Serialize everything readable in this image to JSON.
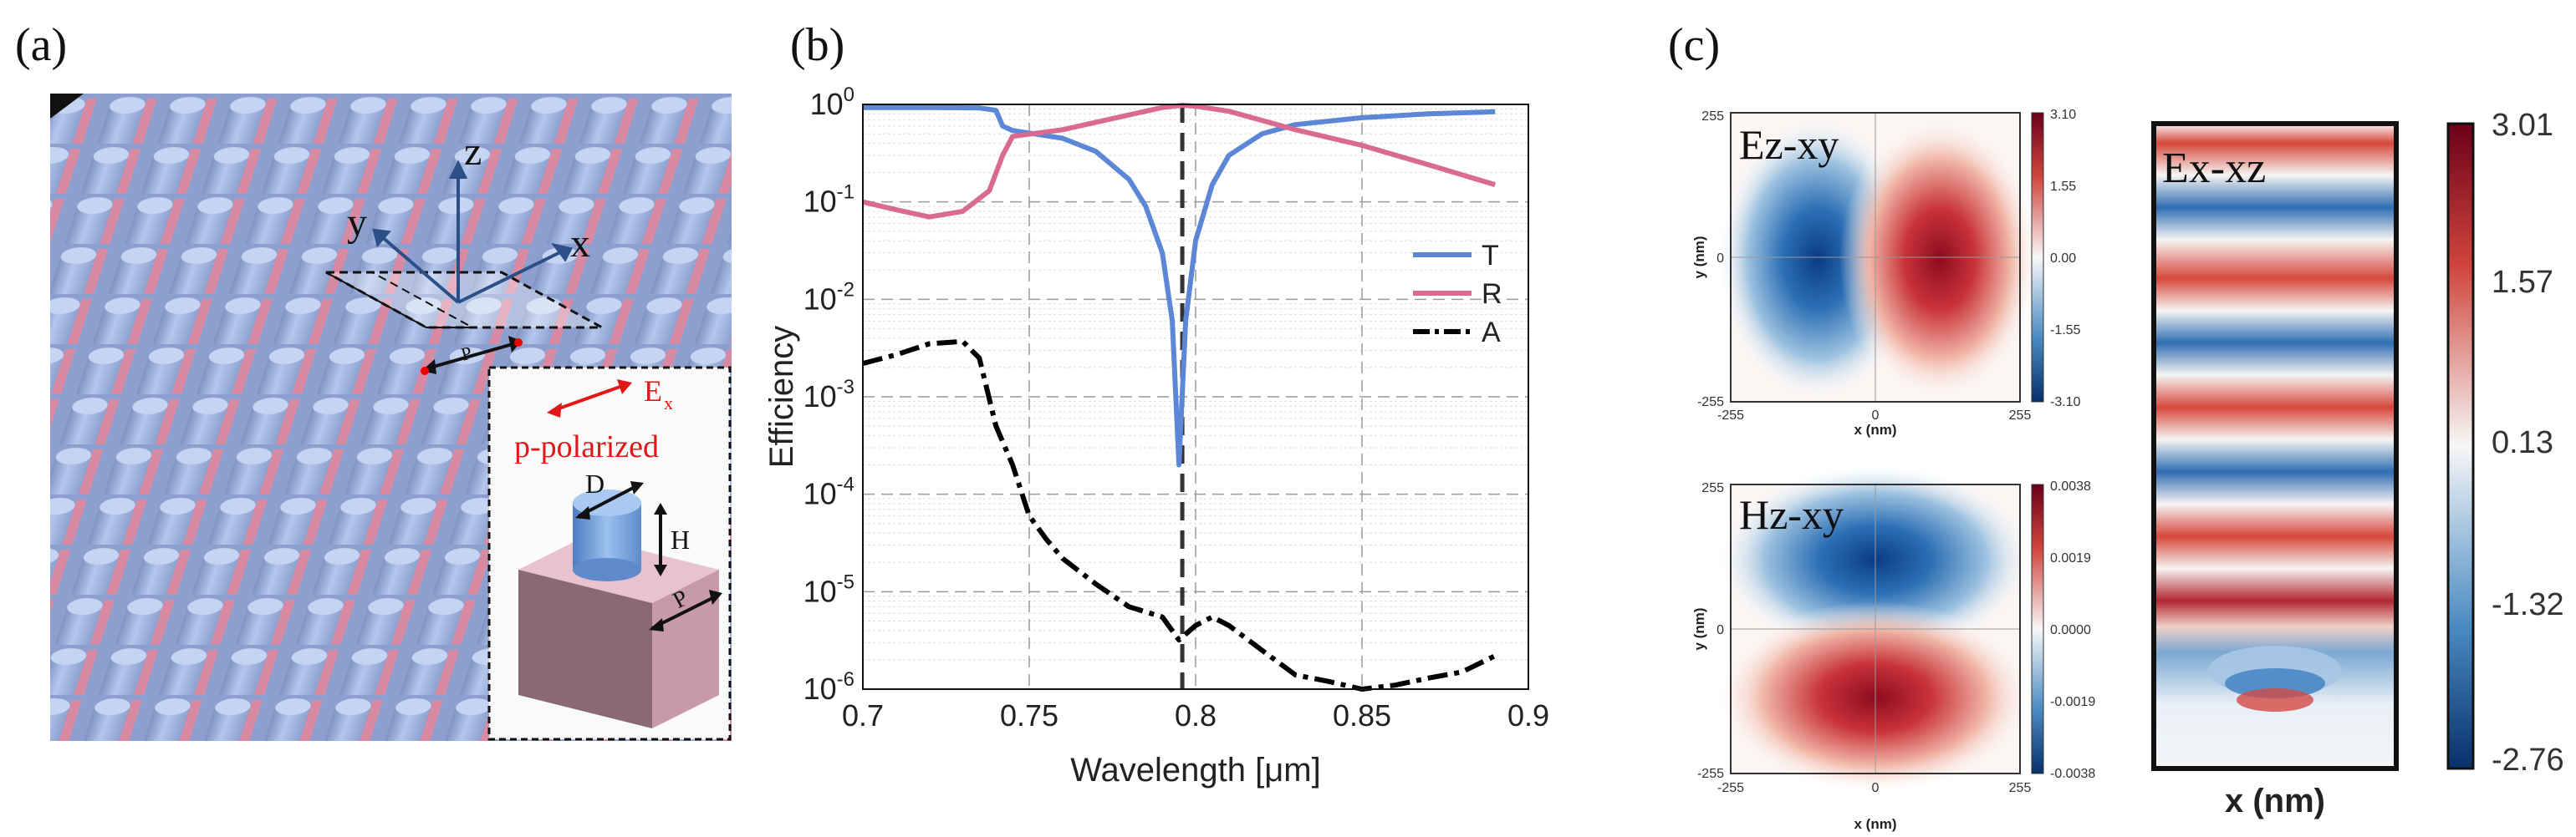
{
  "panels": {
    "a": {
      "label": "(a)",
      "axis_x": "x",
      "axis_y": "y",
      "axis_z": "z",
      "period_label": "P",
      "inset": {
        "field_label": "E",
        "field_sub": "x",
        "polarization": "p-polarized",
        "diameter": "D",
        "height": "H",
        "period": "P"
      }
    },
    "b": {
      "label": "(b)"
    },
    "c": {
      "label": "(c)",
      "maps": [
        {
          "title": "Ez-xy",
          "xlabel": "x (nm)",
          "ylabel": "y (nm)",
          "xticks": [
            "-255",
            "0",
            "255"
          ],
          "yticks": [
            "255",
            "0",
            "-255"
          ],
          "colorbar": [
            "3.10",
            "1.55",
            "0.00",
            "-1.55",
            "-3.10"
          ]
        },
        {
          "title": "Hz-xy",
          "xlabel": "x (nm)",
          "ylabel": "y (nm)",
          "xticks": [
            "-255",
            "0",
            "255"
          ],
          "yticks": [
            "255",
            "0",
            "-255"
          ],
          "colorbar": [
            "0.0038",
            "0.0019",
            "0.0000",
            "-0.0019",
            "-0.0038"
          ]
        },
        {
          "title": "Ex-xz",
          "xlabel": "x (nm)",
          "colorbar": [
            "3.01",
            "1.57",
            "0.13",
            "-1.32",
            "-2.76"
          ]
        }
      ]
    }
  },
  "chart_data": {
    "type": "line",
    "xlabel": "Wavelength [μm]",
    "ylabel": "Efficiency",
    "yscale": "log",
    "xlim": [
      0.7,
      0.9
    ],
    "ylim": [
      1e-06,
      1
    ],
    "xticks": [
      "0.7",
      "0.75",
      "0.8",
      "0.85",
      "0.9"
    ],
    "yticks": [
      {
        "base": "10",
        "exp": "0"
      },
      {
        "base": "10",
        "exp": "-1"
      },
      {
        "base": "10",
        "exp": "-2"
      },
      {
        "base": "10",
        "exp": "-3"
      },
      {
        "base": "10",
        "exp": "-4"
      },
      {
        "base": "10",
        "exp": "-5"
      },
      {
        "base": "10",
        "exp": "-6"
      }
    ],
    "resonance_marker": 0.796,
    "legend_position": "right",
    "series": [
      {
        "name": "T",
        "color": "#5b87d6",
        "style": "solid",
        "points": [
          [
            0.7,
            0.93
          ],
          [
            0.72,
            0.93
          ],
          [
            0.735,
            0.92
          ],
          [
            0.74,
            0.87
          ],
          [
            0.742,
            0.6
          ],
          [
            0.745,
            0.54
          ],
          [
            0.76,
            0.45
          ],
          [
            0.77,
            0.33
          ],
          [
            0.78,
            0.17
          ],
          [
            0.785,
            0.09
          ],
          [
            0.79,
            0.03
          ],
          [
            0.793,
            0.006
          ],
          [
            0.795,
            0.0002
          ],
          [
            0.797,
            0.006
          ],
          [
            0.8,
            0.04
          ],
          [
            0.805,
            0.15
          ],
          [
            0.81,
            0.3
          ],
          [
            0.82,
            0.5
          ],
          [
            0.83,
            0.62
          ],
          [
            0.85,
            0.73
          ],
          [
            0.87,
            0.8
          ],
          [
            0.89,
            0.84
          ]
        ]
      },
      {
        "name": "R",
        "color": "#d96a92",
        "style": "solid",
        "points": [
          [
            0.7,
            0.1
          ],
          [
            0.71,
            0.083
          ],
          [
            0.72,
            0.07
          ],
          [
            0.73,
            0.08
          ],
          [
            0.738,
            0.13
          ],
          [
            0.742,
            0.3
          ],
          [
            0.745,
            0.47
          ],
          [
            0.76,
            0.55
          ],
          [
            0.78,
            0.78
          ],
          [
            0.79,
            0.93
          ],
          [
            0.796,
            0.98
          ],
          [
            0.8,
            0.96
          ],
          [
            0.81,
            0.85
          ],
          [
            0.83,
            0.55
          ],
          [
            0.85,
            0.38
          ],
          [
            0.87,
            0.24
          ],
          [
            0.89,
            0.15
          ]
        ]
      },
      {
        "name": "A",
        "color": "#000000",
        "style": "dashdot",
        "points": [
          [
            0.7,
            0.0022
          ],
          [
            0.71,
            0.0027
          ],
          [
            0.72,
            0.0035
          ],
          [
            0.73,
            0.0037
          ],
          [
            0.735,
            0.0025
          ],
          [
            0.74,
            0.0005
          ],
          [
            0.745,
            0.0002
          ],
          [
            0.75,
            6e-05
          ],
          [
            0.755,
            3.5e-05
          ],
          [
            0.76,
            2.2e-05
          ],
          [
            0.77,
            1.2e-05
          ],
          [
            0.78,
            7e-06
          ],
          [
            0.79,
            5.5e-06
          ],
          [
            0.795,
            3.2e-06
          ],
          [
            0.8,
            4.5e-06
          ],
          [
            0.805,
            5.5e-06
          ],
          [
            0.81,
            4.5e-06
          ],
          [
            0.82,
            2.5e-06
          ],
          [
            0.83,
            1.4e-06
          ],
          [
            0.84,
            1.2e-06
          ],
          [
            0.85,
            1e-06
          ],
          [
            0.86,
            1.1e-06
          ],
          [
            0.87,
            1.3e-06
          ],
          [
            0.88,
            1.5e-06
          ],
          [
            0.89,
            2.2e-06
          ]
        ]
      }
    ]
  }
}
